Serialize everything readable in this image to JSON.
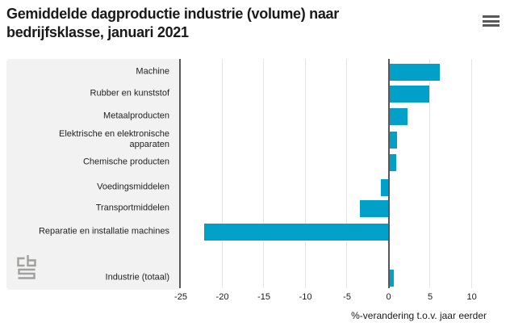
{
  "header": {
    "title": "Gemiddelde dagproductie industrie (volume) naar bedrijfsklasse, januari 2021",
    "menu_icon": "hamburger-menu-icon"
  },
  "branding": {
    "logo": "cbs-logo"
  },
  "colors": {
    "bar": "#00a0c8",
    "axis_line": "#58585a",
    "gridline": "#e4e4e4",
    "label_panel": "#f2f2f2",
    "text": "#1a1a1a"
  },
  "chart_data": {
    "type": "bar",
    "orientation": "horizontal",
    "title": "Gemiddelde dagproductie industrie (volume) naar bedrijfsklasse, januari 2021",
    "categories": [
      "Machine",
      "Rubber en kunststof",
      "Metaalproducten",
      "Elektrische en elektronische apparaten",
      "Chemische producten",
      "Voedingsmiddelen",
      "Transportmiddelen",
      "Reparatie en installatie machines",
      "Industrie (totaal)"
    ],
    "values": [
      6.2,
      4.9,
      2.3,
      1.0,
      0.9,
      -0.9,
      -3.5,
      -22.2,
      0.6
    ],
    "xlabel": "%-verandering t.o.v. jaar eerder",
    "ylabel": "",
    "x_ticks": [
      -25,
      -20,
      -15,
      -10,
      -5,
      0,
      5,
      10
    ],
    "xlim": [
      -25,
      14.6
    ],
    "grid": true,
    "zero_line": true,
    "legend": "none"
  }
}
